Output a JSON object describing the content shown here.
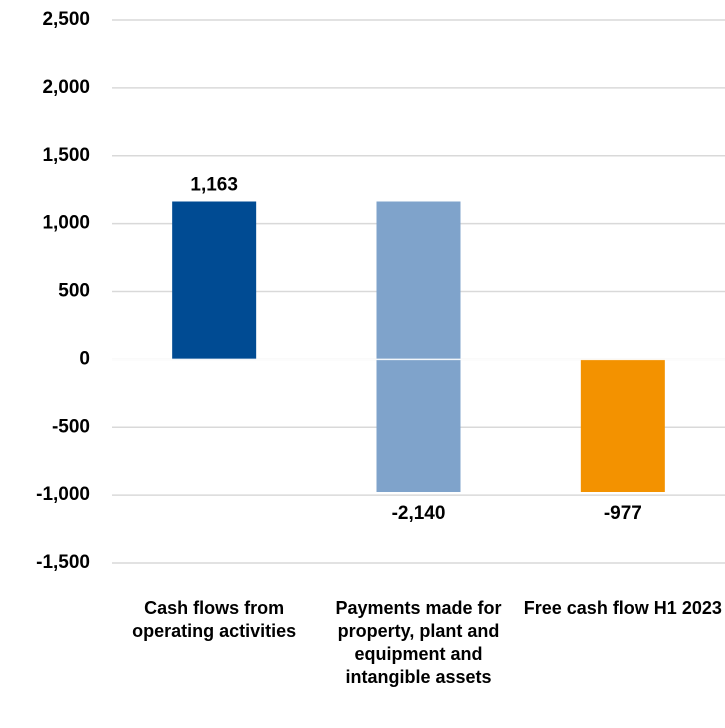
{
  "chart_data": {
    "type": "waterfall",
    "categories": [
      "Cash flows from operating activities",
      "Payments made for property, plant and equipment and intangible assets",
      "Free cash flow H1 2023"
    ],
    "values": [
      1163,
      -2140,
      -977
    ],
    "value_labels": [
      "1,163",
      "-2,140",
      "-977"
    ],
    "measure": [
      "relative",
      "relative",
      "total"
    ],
    "colors": [
      "#004b93",
      "#7fa3cb",
      "#f39200"
    ],
    "ylim": [
      -1500,
      2500
    ],
    "yticks": [
      {
        "value": -1500,
        "label": "-1,500"
      },
      {
        "value": -1000,
        "label": "-1,000"
      },
      {
        "value": -500,
        "label": "-500"
      },
      0,
      500,
      {
        "value": 1000,
        "label": "1,000"
      },
      {
        "value": 1500,
        "label": "1,500"
      },
      {
        "value": 2000,
        "label": "2,000"
      },
      {
        "value": 2500,
        "label": "2,500"
      }
    ],
    "grid": true
  }
}
